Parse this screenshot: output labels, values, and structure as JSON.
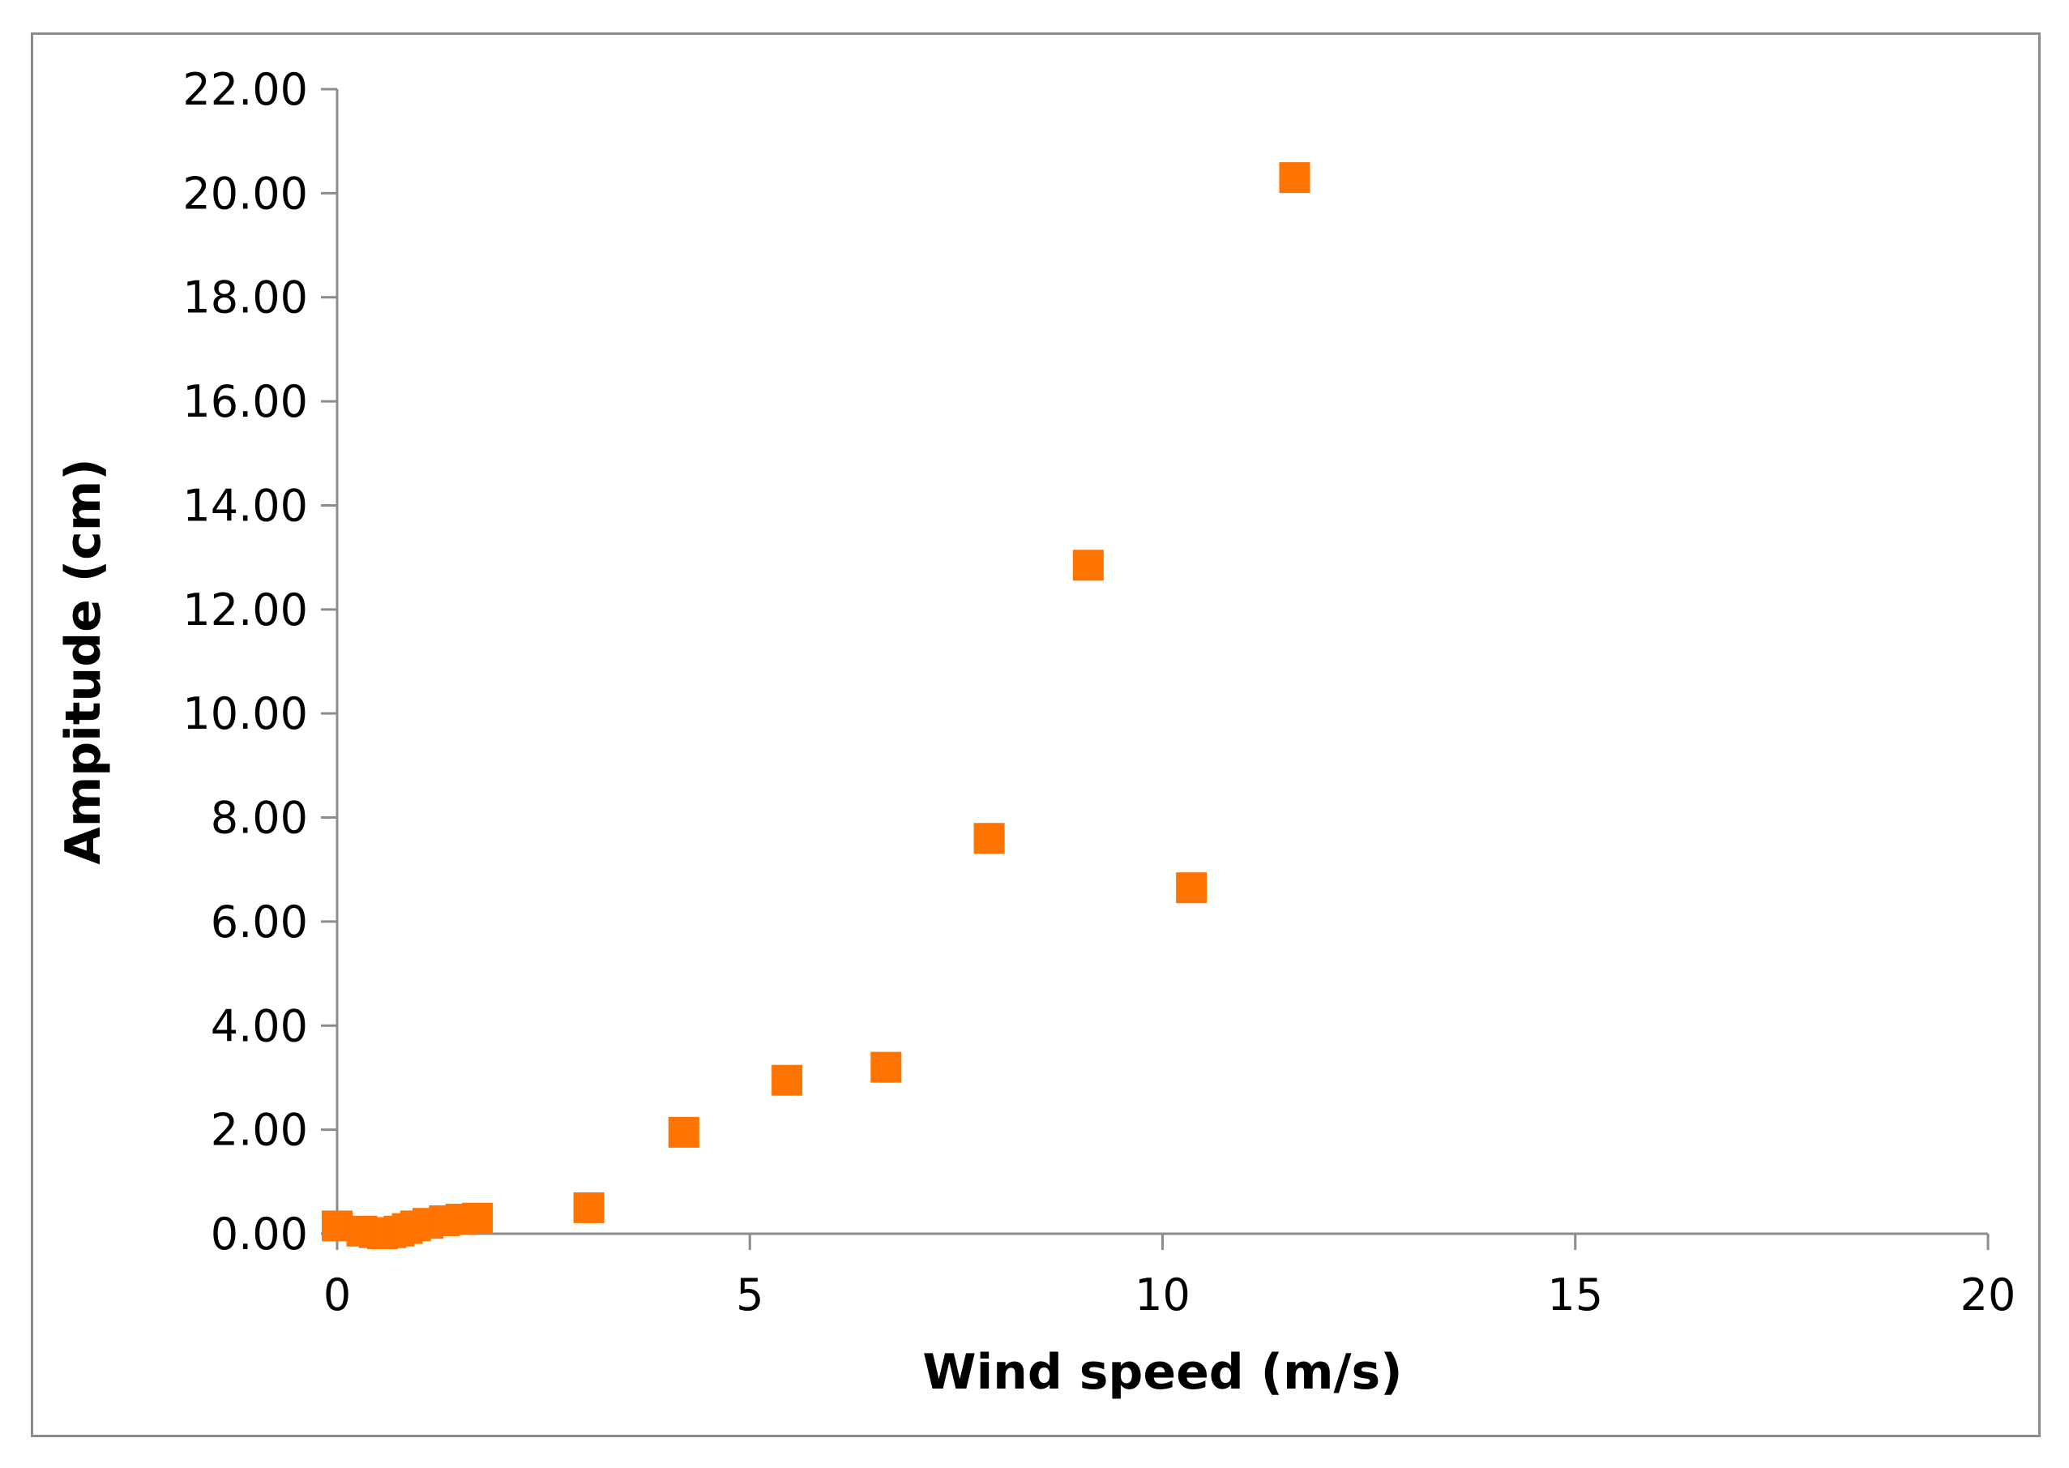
{
  "chart_data": {
    "type": "scatter",
    "title": "",
    "xlabel": "Wind speed (m/s)",
    "ylabel": "Ampitude (cm)",
    "xlim": [
      0,
      20
    ],
    "ylim": [
      0,
      22
    ],
    "x_ticks": [
      0,
      5,
      10,
      15,
      20
    ],
    "y_ticks": [
      0,
      2,
      4,
      6,
      8,
      10,
      12,
      14,
      16,
      18,
      20,
      22
    ],
    "x_tick_labels": [
      "0",
      "5",
      "10",
      "15",
      "20"
    ],
    "y_tick_labels": [
      "0.00",
      "2.00",
      "4.00",
      "6.00",
      "8.00",
      "10.00",
      "12.00",
      "14.00",
      "16.00",
      "18.00",
      "20.00",
      "22.00"
    ],
    "grid": false,
    "legend": "none",
    "marker": "square",
    "color": "#ff7300",
    "series": [
      {
        "x": [
          0.0,
          0.3,
          0.45,
          0.55,
          0.65,
          0.75,
          0.85,
          0.95,
          1.1,
          1.3,
          1.5,
          1.7,
          3.05,
          4.2,
          5.45,
          6.65,
          7.9,
          9.1,
          10.35,
          11.6
        ],
        "y": [
          0.15,
          0.05,
          0.02,
          0.0,
          0.02,
          0.05,
          0.1,
          0.15,
          0.2,
          0.25,
          0.28,
          0.3,
          0.5,
          1.95,
          2.95,
          3.2,
          7.6,
          12.85,
          6.65,
          20.3
        ]
      }
    ]
  }
}
